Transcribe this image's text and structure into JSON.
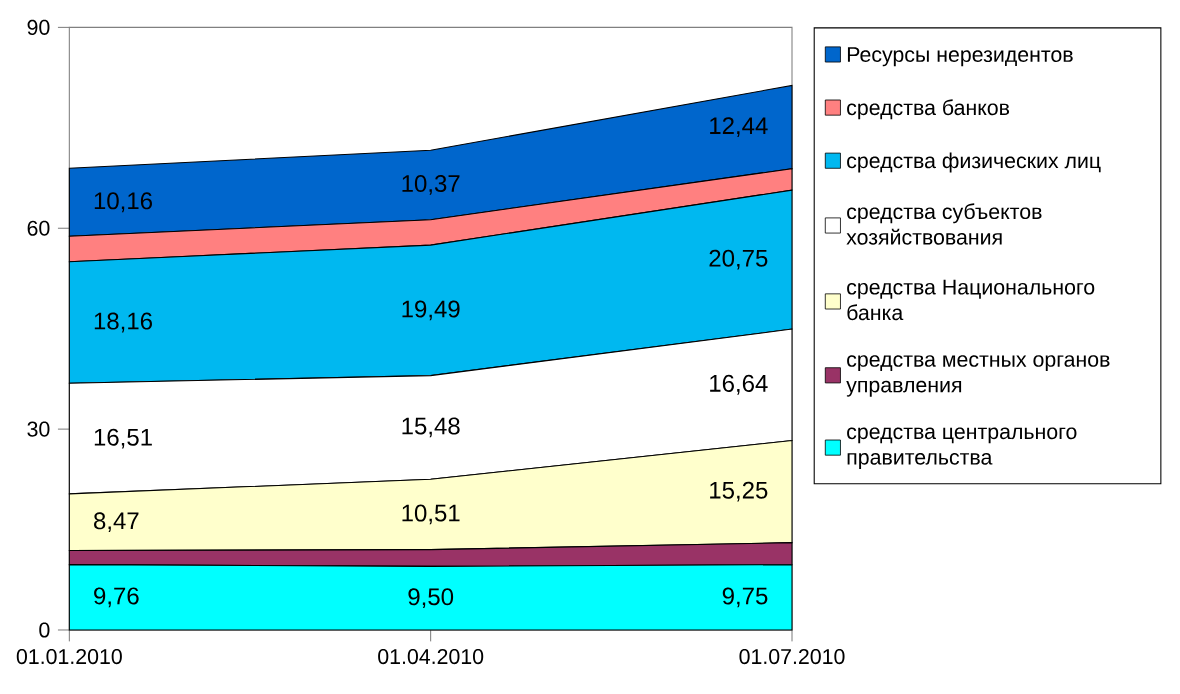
{
  "chart_data": {
    "type": "area",
    "stacked": true,
    "legend": "right",
    "categories": [
      "01.01.2010",
      "01.04.2010",
      "01.07.2010"
    ],
    "ylim": [
      0,
      90
    ],
    "yticks": [
      0,
      30,
      60,
      90
    ],
    "series": [
      {
        "name": "средства центрального правительства",
        "color": "#00ffff",
        "values": [
          9.76,
          9.5,
          9.75
        ],
        "value_labels": [
          "9,76",
          "9,50",
          "9,75"
        ]
      },
      {
        "name": "средства местных органов управления",
        "color": "#993366",
        "values": [
          2.1,
          2.5,
          3.3
        ]
      },
      {
        "name": "средства Национального банка",
        "color": "#ffffcc",
        "values": [
          8.47,
          10.51,
          15.25
        ],
        "value_labels": [
          "8,47",
          "10,51",
          "15,25"
        ]
      },
      {
        "name": "средства субъектов хозяйствования",
        "color": "#ffffff",
        "values": [
          16.51,
          15.48,
          16.64
        ],
        "value_labels": [
          "16,51",
          "15,48",
          "16,64"
        ]
      },
      {
        "name": "средства физических лиц",
        "color": "#00b8f0",
        "values": [
          18.16,
          19.49,
          20.75
        ],
        "value_labels": [
          "18,16",
          "19,49",
          "20,75"
        ]
      },
      {
        "name": "средства банков",
        "color": "#ff8080",
        "values": [
          3.8,
          3.8,
          3.2
        ]
      },
      {
        "name": "Ресурсы нерезидентов",
        "color": "#0066cc",
        "values": [
          10.16,
          10.37,
          12.44
        ],
        "value_labels": [
          "10,16",
          "10,37",
          "12,44"
        ]
      }
    ]
  }
}
